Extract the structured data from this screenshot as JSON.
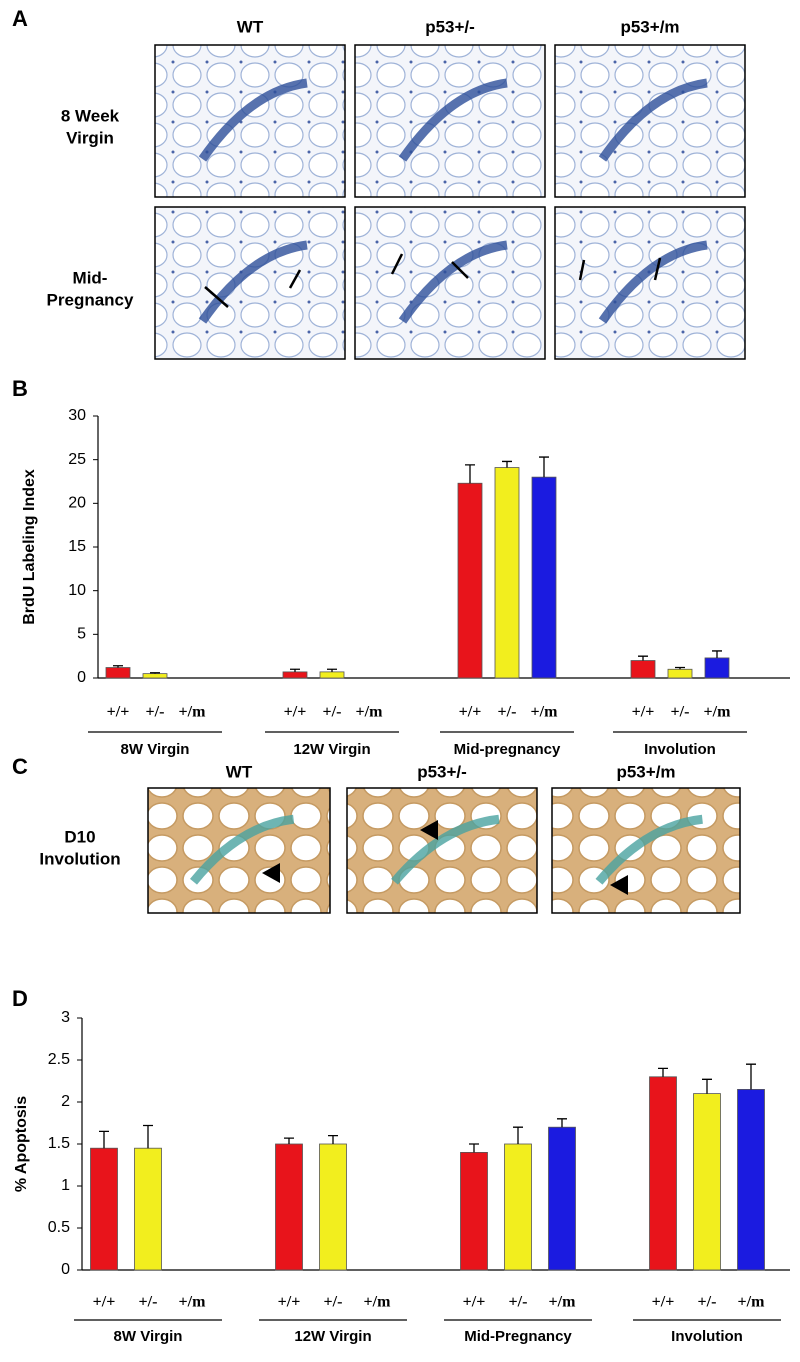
{
  "panel_labels": [
    "A",
    "B",
    "C",
    "D"
  ],
  "panel_a": {
    "columns": [
      "WT",
      "p53+/-",
      "p53+/m"
    ],
    "rows": [
      [
        "8 Week",
        "Virgin"
      ],
      [
        "Mid-",
        "Pregnancy"
      ]
    ]
  },
  "panel_c": {
    "columns": [
      "WT",
      "p53+/-",
      "p53+/m"
    ],
    "row": [
      "D10",
      "Involution"
    ]
  },
  "chart_data": [
    {
      "type": "bar",
      "ylabel": "BrdU Labeling Index",
      "categories": [
        "8W Virgin",
        "12W Virgin",
        "Mid-pregnancy",
        "Involution"
      ],
      "series": [
        {
          "name": "+/+",
          "color": "#e8141b",
          "values": [
            1.2,
            0.7,
            22.3,
            2.0
          ],
          "errors": [
            0.2,
            0.3,
            2.1,
            0.5
          ]
        },
        {
          "name": "+/-",
          "color": "#f2ee1e",
          "values": [
            0.5,
            0.7,
            24.1,
            1.0
          ],
          "errors": [
            0.1,
            0.3,
            0.7,
            0.2
          ]
        },
        {
          "name": "+/m",
          "color": "#1b1be0",
          "values": [
            null,
            null,
            23.0,
            2.3
          ],
          "errors": [
            null,
            null,
            2.3,
            0.8
          ]
        }
      ],
      "ylim": [
        0,
        30
      ],
      "yticks": [
        0,
        5,
        10,
        15,
        20,
        25,
        30
      ]
    },
    {
      "type": "bar",
      "ylabel": "% Apoptosis",
      "categories": [
        "8W Virgin",
        "12W Virgin",
        "Mid-Pregnancy",
        "Involution"
      ],
      "series": [
        {
          "name": "+/+",
          "color": "#e8141b",
          "values": [
            1.45,
            1.5,
            1.4,
            2.3
          ],
          "errors": [
            0.2,
            0.07,
            0.1,
            0.1
          ]
        },
        {
          "name": "+/-",
          "color": "#f2ee1e",
          "values": [
            1.45,
            1.5,
            1.5,
            2.1
          ],
          "errors": [
            0.27,
            0.1,
            0.2,
            0.17
          ]
        },
        {
          "name": "+/m",
          "color": "#1b1be0",
          "values": [
            null,
            null,
            1.7,
            2.15
          ],
          "errors": [
            null,
            null,
            0.1,
            0.3
          ]
        }
      ],
      "ylim": [
        0,
        3
      ],
      "yticks": [
        0,
        0.5,
        1,
        1.5,
        2,
        2.5,
        3
      ]
    }
  ]
}
